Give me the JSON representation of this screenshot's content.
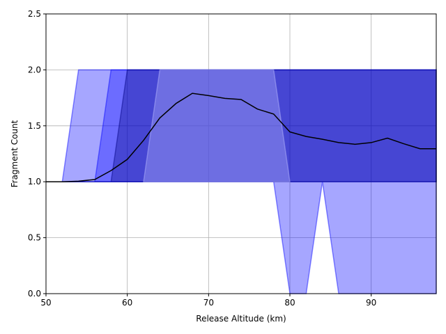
{
  "chart_data": {
    "type": "line",
    "title": "",
    "xlabel": "Release Altitude (km)",
    "ylabel": "Fragment Count",
    "xlim": [
      50,
      98
    ],
    "ylim": [
      0.0,
      2.5
    ],
    "x_ticks": [
      50,
      60,
      70,
      80,
      90
    ],
    "x_tick_labels": [
      "50",
      "60",
      "70",
      "80",
      "90"
    ],
    "y_ticks": [
      0.0,
      0.5,
      1.0,
      1.5,
      2.0,
      2.5
    ],
    "y_tick_labels": [
      "0.0",
      "0.5",
      "1.0",
      "1.5",
      "2.0",
      "2.5"
    ],
    "grid": true,
    "legend": false,
    "series": [
      {
        "kind": "line",
        "color": "#000000",
        "x": [
          50,
          52,
          54,
          56,
          58,
          60,
          62,
          64,
          66,
          68,
          70,
          72,
          74,
          76,
          78,
          80,
          82,
          84,
          86,
          88,
          90,
          92,
          94,
          96,
          98
        ],
        "y": [
          1.0,
          1.0,
          1.005,
          1.02,
          1.1,
          1.2,
          1.37,
          1.57,
          1.7,
          1.79,
          1.77,
          1.745,
          1.735,
          1.65,
          1.605,
          1.445,
          1.405,
          1.38,
          1.35,
          1.335,
          1.35,
          1.39,
          1.34,
          1.295,
          1.295
        ]
      },
      {
        "kind": "band",
        "color": "#0000ff",
        "x": [
          50,
          52,
          54,
          56,
          58,
          60,
          62,
          64,
          66,
          68,
          70,
          72,
          74,
          76,
          78,
          80,
          82,
          84,
          86,
          88,
          90,
          92,
          94,
          96,
          98
        ],
        "lower": [
          1,
          1,
          1,
          1,
          1,
          1,
          1,
          1,
          1,
          1,
          1,
          1,
          1,
          1,
          1,
          0,
          0,
          1,
          0,
          0,
          0,
          0,
          0,
          0,
          0
        ],
        "upper": [
          1,
          1,
          2,
          2,
          2,
          2,
          2,
          2,
          2,
          2,
          2,
          2,
          2,
          2,
          2,
          2,
          2,
          2,
          2,
          2,
          2,
          2,
          2,
          2,
          2
        ]
      },
      {
        "kind": "band",
        "color": "#0000ff",
        "x": [
          50,
          52,
          54,
          56,
          58,
          60,
          62,
          64,
          66,
          68,
          70,
          72,
          74,
          76,
          78,
          80,
          82,
          84,
          86,
          88,
          90,
          92,
          94,
          96,
          98
        ],
        "lower": [
          1,
          1,
          1,
          1,
          1,
          1,
          1,
          1,
          1,
          1,
          1,
          1,
          1,
          1,
          1,
          1,
          1,
          1,
          1,
          1,
          1,
          1,
          1,
          1,
          1
        ],
        "upper": [
          1,
          1,
          1,
          1,
          2,
          2,
          2,
          2,
          2,
          2,
          2,
          2,
          2,
          2,
          2,
          2,
          2,
          2,
          2,
          2,
          2,
          2,
          2,
          2,
          2
        ]
      },
      {
        "kind": "band",
        "color": "#000080",
        "x": [
          50,
          52,
          54,
          56,
          58,
          60,
          62,
          64,
          66,
          68,
          70,
          72,
          74,
          76,
          78,
          80,
          82,
          84,
          86,
          88,
          90,
          92,
          94,
          96,
          98
        ],
        "lower": [
          1,
          1,
          1,
          1,
          1,
          1,
          1,
          1,
          1,
          1,
          1,
          1,
          1,
          1,
          1,
          1,
          1,
          1,
          1,
          1,
          1,
          1,
          1,
          1,
          1
        ],
        "upper": [
          1,
          1,
          1,
          1,
          1,
          2,
          2,
          2,
          2,
          2,
          2,
          2,
          2,
          2,
          2,
          2,
          2,
          2,
          2,
          2,
          2,
          2,
          2,
          2,
          2
        ]
      },
      {
        "kind": "band",
        "color": "#bbbbff",
        "x": [
          62,
          64,
          66,
          68,
          70,
          72,
          74,
          76,
          78,
          80
        ],
        "lower": [
          1,
          1,
          1,
          1,
          1,
          1,
          1,
          1,
          1,
          1
        ],
        "upper": [
          1,
          2,
          2,
          2,
          2,
          2,
          2,
          2,
          2,
          1
        ]
      }
    ]
  }
}
